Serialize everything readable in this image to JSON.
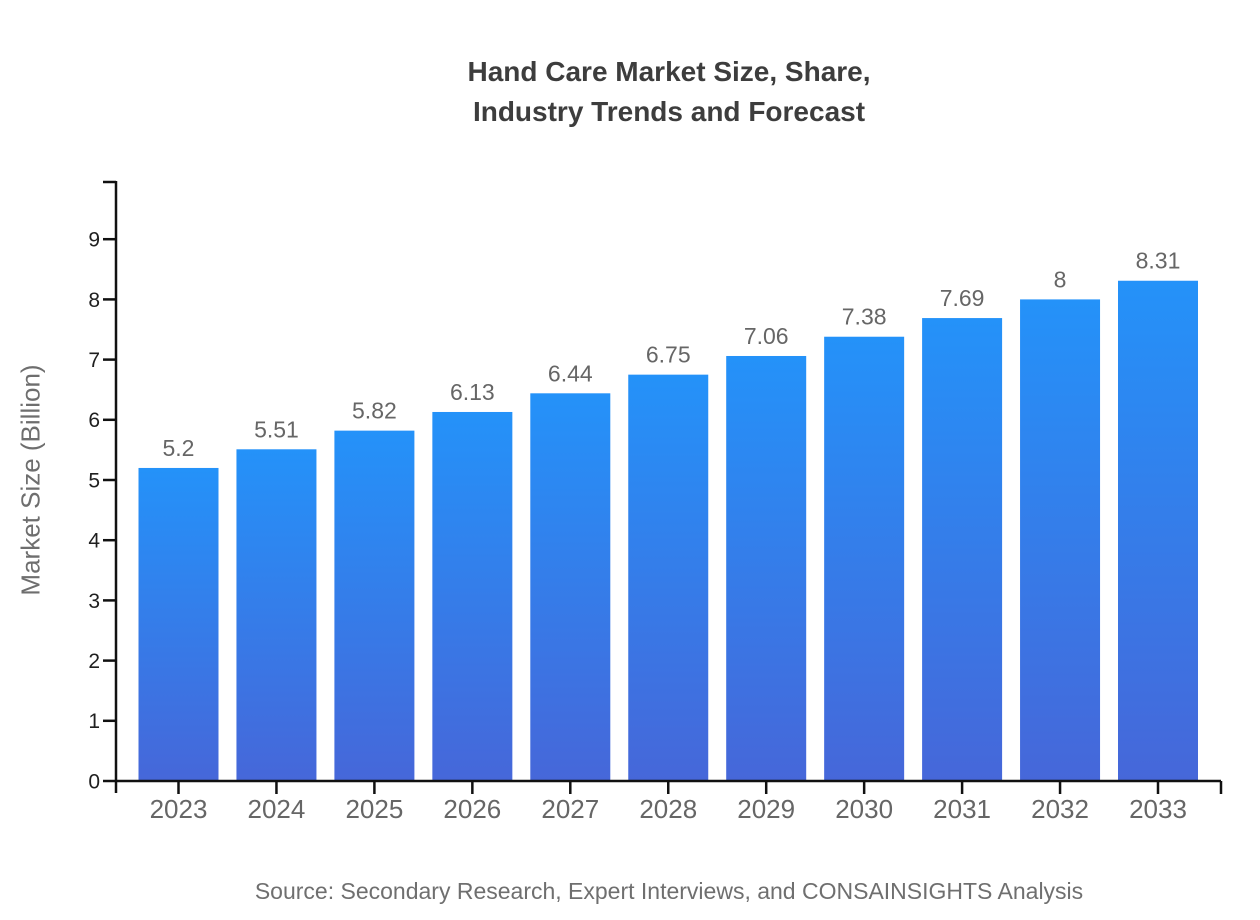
{
  "title": {
    "line1": "Hand Care Market Size, Share,",
    "line2": "Industry Trends and Forecast"
  },
  "source": "Source: Secondary Research, Expert Interviews, and CONSAINSIGHTS Analysis",
  "chart_data": {
    "type": "bar",
    "title": "Hand Care Market Size, Share, Industry Trends and Forecast",
    "categories": [
      "2023",
      "2024",
      "2025",
      "2026",
      "2027",
      "2028",
      "2029",
      "2030",
      "2031",
      "2032",
      "2033"
    ],
    "values": [
      5.2,
      5.51,
      5.82,
      6.13,
      6.44,
      6.75,
      7.06,
      7.38,
      7.69,
      8,
      8.31
    ],
    "xlabel": "",
    "ylabel": "Market Size (Billion)",
    "ylim": [
      0,
      9
    ],
    "yticks": [
      0,
      1,
      2,
      3,
      4,
      5,
      6,
      7,
      8,
      9
    ],
    "grid": false,
    "legend": null,
    "value_labels_shown": true
  },
  "colors": {
    "bar_gradient_top": "#2492f9",
    "bar_gradient_bottom": "#4667d9",
    "axis_line": "#111111",
    "y_tick_label": "#1f1f1f",
    "x_tick_label": "#666666",
    "value_label": "#666666",
    "title_text": "#3d3d3d",
    "axis_title_text": "#6e6e6e",
    "source_text": "#6f6f6f",
    "background": "#ffffff"
  }
}
